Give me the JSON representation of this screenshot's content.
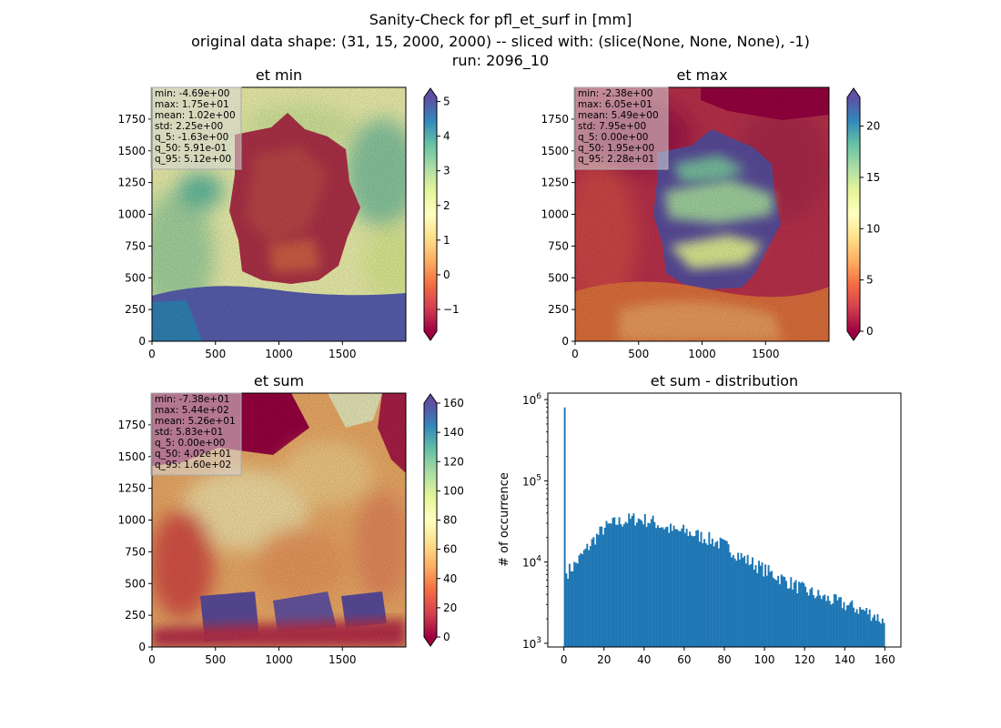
{
  "figure": {
    "title_line1": "Sanity-Check for pfl_et_surf in [mm]",
    "title_line2": "original data shape: (31, 15, 2000, 2000) -- sliced with: (slice(None, None, None), -1)",
    "title_line3": "run: 2096_10"
  },
  "chart_data": [
    {
      "type": "heatmap",
      "title": "et min",
      "x_ticks": [
        0,
        500,
        1000,
        1500
      ],
      "y_ticks": [
        0,
        250,
        500,
        750,
        1000,
        1250,
        1500,
        1750
      ],
      "xlim": [
        0,
        2000
      ],
      "ylim": [
        0,
        2000
      ],
      "colorbar": {
        "min": -1.63,
        "max": 5.12,
        "ticks": [
          -1,
          0,
          1,
          2,
          3,
          4,
          5
        ],
        "extend": "both",
        "colormap": "Spectral"
      },
      "stats": [
        "min: -4.69e+00",
        "max: 1.75e+01",
        "mean: 1.02e+00",
        "std: 2.25e+00",
        "q_5: -1.63e+00",
        "q_50: 5.91e-01",
        "q_95: 5.12e+00"
      ]
    },
    {
      "type": "heatmap",
      "title": "et max",
      "x_ticks": [
        0,
        500,
        1000,
        1500
      ],
      "y_ticks": [
        0,
        250,
        500,
        750,
        1000,
        1250,
        1500,
        1750
      ],
      "xlim": [
        0,
        2000
      ],
      "ylim": [
        0,
        2000
      ],
      "colorbar": {
        "min": 0,
        "max": 22.8,
        "ticks": [
          0,
          5,
          10,
          15,
          20
        ],
        "extend": "both",
        "colormap": "Spectral"
      },
      "stats": [
        "min: -2.38e+00",
        "max: 6.05e+01",
        "mean: 5.49e+00",
        "std: 7.95e+00",
        "q_5: 0.00e+00",
        "q_50: 1.95e+00",
        "q_95: 2.28e+01"
      ]
    },
    {
      "type": "heatmap",
      "title": "et sum",
      "x_ticks": [
        0,
        500,
        1000,
        1500
      ],
      "y_ticks": [
        0,
        250,
        500,
        750,
        1000,
        1250,
        1500,
        1750
      ],
      "xlim": [
        0,
        2000
      ],
      "ylim": [
        0,
        2000
      ],
      "colorbar": {
        "min": 0,
        "max": 160,
        "ticks": [
          0,
          20,
          40,
          60,
          80,
          100,
          120,
          140,
          160
        ],
        "extend": "both",
        "colormap": "Spectral"
      },
      "stats": [
        "min: -7.38e+01",
        "max: 5.44e+02",
        "mean: 5.26e+01",
        "std: 5.83e+01",
        "q_5: 0.00e+00",
        "q_50: 4.02e+01",
        "q_95: 1.60e+02"
      ]
    },
    {
      "type": "bar",
      "title": "et sum - distribution",
      "ylabel": "# of occurrence",
      "yscale": "log",
      "xlim": [
        -8,
        168
      ],
      "ylim": [
        900,
        1200000
      ],
      "x_ticks": [
        0,
        20,
        40,
        60,
        80,
        100,
        120,
        140,
        160
      ],
      "y_ticks": [
        {
          "label": "10",
          "exp": "3",
          "value": 1000
        },
        {
          "label": "10",
          "exp": "4",
          "value": 10000
        },
        {
          "label": "10",
          "exp": "5",
          "value": 100000
        },
        {
          "label": "10",
          "exp": "6",
          "value": 1000000
        }
      ],
      "color": "#1f77b4",
      "bin_width": 0.8,
      "profile_x": [
        0,
        0.4,
        0.8,
        1.6,
        5,
        10,
        15,
        20,
        25,
        30,
        35,
        40,
        45,
        50,
        55,
        60,
        65,
        70,
        75,
        80,
        90,
        100,
        110,
        120,
        130,
        140,
        150,
        155,
        160
      ],
      "profile_y": [
        800000,
        800000,
        7000,
        7500,
        9000,
        13000,
        19000,
        26000,
        30000,
        32000,
        34000,
        33000,
        31000,
        27000,
        24000,
        24000,
        22000,
        20000,
        18000,
        16000,
        11000,
        8000,
        6000,
        4500,
        3600,
        3000,
        2500,
        2200,
        1800
      ]
    }
  ]
}
